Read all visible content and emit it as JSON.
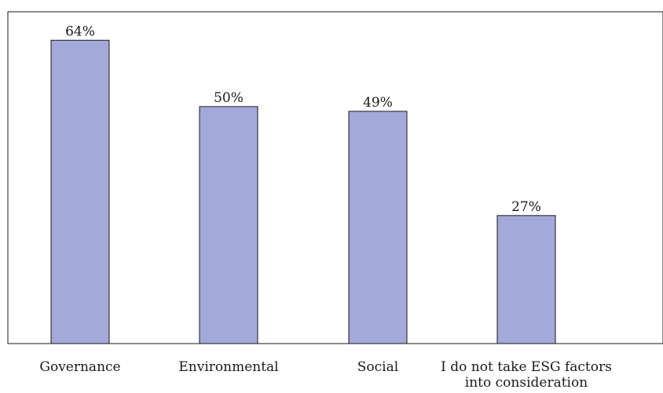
{
  "chart_data": {
    "type": "bar",
    "title": "",
    "xlabel": "",
    "ylabel": "",
    "categories": [
      [
        "Governance"
      ],
      [
        "Environmental"
      ],
      [
        "Social"
      ],
      [
        "I do not take ESG factors",
        "into consideration"
      ]
    ],
    "values": [
      64,
      50,
      49,
      27
    ],
    "data_labels": [
      "64%",
      "50%",
      "49%",
      "27%"
    ],
    "ylim": [
      0,
      70
    ],
    "grid": false,
    "legend": "none",
    "bar_color": "#a3a9d8"
  }
}
